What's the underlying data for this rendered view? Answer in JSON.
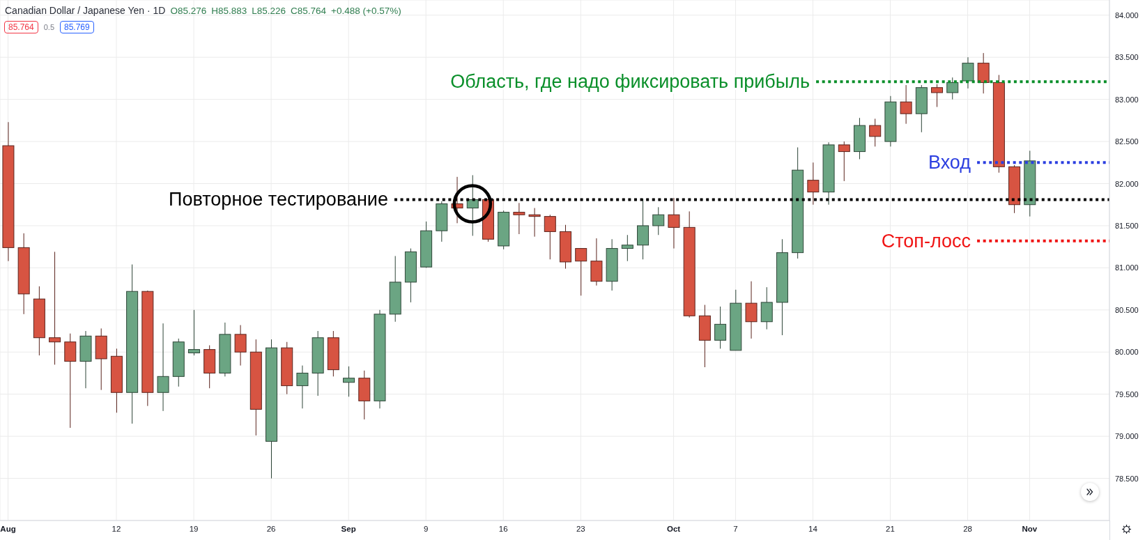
{
  "chart_data": {
    "type": "candlestick",
    "title": "Canadian Dollar / Japanese Yen · 1D",
    "annotations": [
      "O85.276",
      "H85.883",
      "L85.226",
      "C85.764",
      "+0.488 (+0.57%)",
      "85.764",
      "0.5",
      "85.769"
    ],
    "categories": [
      "Aug",
      null,
      null,
      null,
      null,
      null,
      null,
      "12",
      null,
      null,
      null,
      null,
      "19",
      null,
      null,
      null,
      null,
      "26",
      null,
      null,
      null,
      null,
      "Sep",
      null,
      null,
      null,
      null,
      "9",
      null,
      null,
      null,
      null,
      "16",
      null,
      null,
      null,
      null,
      "23",
      null,
      null,
      null,
      null,
      null,
      "Oct",
      null,
      null,
      null,
      "7",
      null,
      null,
      null,
      null,
      "14",
      null,
      null,
      null,
      null,
      "21",
      null,
      null,
      null,
      null,
      "28",
      null,
      null,
      null,
      "Nov",
      null,
      null,
      null,
      null,
      null
    ],
    "ohlc": [
      [
        82.45,
        82.73,
        81.08,
        81.24
      ],
      [
        81.24,
        81.41,
        80.45,
        80.69
      ],
      [
        80.63,
        80.78,
        79.96,
        80.17
      ],
      [
        80.17,
        81.19,
        79.85,
        80.12
      ],
      [
        80.12,
        80.22,
        79.1,
        79.89
      ],
      [
        79.89,
        80.25,
        79.57,
        80.19
      ],
      [
        80.19,
        80.28,
        79.55,
        79.92
      ],
      [
        79.95,
        80.04,
        79.28,
        79.52
      ],
      [
        79.52,
        81.04,
        79.15,
        80.72
      ],
      [
        80.72,
        80.73,
        79.36,
        79.52
      ],
      [
        79.52,
        80.34,
        79.3,
        79.71
      ],
      [
        79.71,
        80.16,
        79.59,
        80.12
      ],
      [
        79.99,
        80.5,
        79.96,
        80.03
      ],
      [
        80.03,
        80.08,
        79.57,
        79.75
      ],
      [
        79.75,
        80.35,
        79.71,
        80.21
      ],
      [
        80.21,
        80.32,
        79.84,
        80.0
      ],
      [
        80.0,
        80.15,
        79.01,
        79.32
      ],
      [
        78.94,
        80.15,
        78.5,
        80.05
      ],
      [
        80.05,
        80.12,
        79.5,
        79.6
      ],
      [
        79.6,
        79.84,
        79.33,
        79.75
      ],
      [
        79.75,
        80.25,
        79.48,
        80.17
      ],
      [
        80.17,
        80.25,
        79.71,
        79.79
      ],
      [
        79.64,
        79.83,
        79.47,
        79.69
      ],
      [
        79.69,
        79.78,
        79.2,
        79.42
      ],
      [
        79.42,
        80.5,
        79.33,
        80.45
      ],
      [
        80.45,
        81.14,
        80.36,
        80.83
      ],
      [
        80.83,
        81.23,
        80.59,
        81.19
      ],
      [
        81.01,
        81.55,
        81.0,
        81.44
      ],
      [
        81.44,
        81.79,
        81.31,
        81.76
      ],
      [
        81.76,
        82.08,
        81.53,
        81.71
      ],
      [
        81.71,
        82.1,
        81.38,
        81.81
      ],
      [
        81.81,
        81.82,
        81.31,
        81.34
      ],
      [
        81.26,
        81.68,
        81.22,
        81.66
      ],
      [
        81.66,
        81.77,
        81.4,
        81.63
      ],
      [
        81.63,
        81.71,
        81.37,
        81.61
      ],
      [
        81.61,
        81.63,
        81.1,
        81.43
      ],
      [
        81.43,
        81.51,
        80.99,
        81.07
      ],
      [
        81.23,
        81.23,
        80.67,
        81.08
      ],
      [
        81.08,
        81.35,
        80.79,
        80.84
      ],
      [
        80.84,
        81.34,
        80.73,
        81.23
      ],
      [
        81.23,
        81.39,
        81.08,
        81.27
      ],
      [
        81.27,
        81.82,
        81.1,
        81.5
      ],
      [
        81.5,
        81.72,
        81.39,
        81.63
      ],
      [
        81.63,
        81.83,
        81.23,
        81.48
      ],
      [
        81.48,
        81.67,
        80.41,
        80.43
      ],
      [
        80.43,
        80.56,
        79.82,
        80.14
      ],
      [
        80.14,
        80.54,
        80.04,
        80.33
      ],
      [
        80.02,
        80.74,
        80.02,
        80.58
      ],
      [
        80.58,
        80.84,
        80.16,
        80.36
      ],
      [
        80.36,
        80.77,
        80.27,
        80.59
      ],
      [
        80.59,
        81.34,
        80.2,
        81.18
      ],
      [
        81.18,
        82.43,
        81.11,
        82.16
      ],
      [
        82.04,
        82.25,
        81.75,
        81.9
      ],
      [
        81.9,
        82.49,
        81.75,
        82.46
      ],
      [
        82.46,
        82.5,
        82.03,
        82.38
      ],
      [
        82.38,
        82.78,
        82.29,
        82.69
      ],
      [
        82.69,
        82.77,
        82.44,
        82.56
      ],
      [
        82.5,
        83.04,
        82.44,
        82.97
      ],
      [
        82.97,
        83.17,
        82.71,
        82.83
      ],
      [
        82.83,
        83.17,
        82.61,
        83.14
      ],
      [
        83.14,
        83.18,
        82.91,
        83.08
      ],
      [
        83.08,
        83.26,
        83.0,
        83.2
      ],
      [
        83.22,
        83.5,
        83.13,
        83.43
      ],
      [
        83.43,
        83.55,
        83.07,
        83.2
      ],
      [
        83.2,
        83.29,
        82.13,
        82.2
      ],
      [
        82.2,
        82.22,
        81.65,
        81.75
      ],
      [
        81.75,
        82.39,
        81.61,
        82.27
      ],
      null,
      null,
      null,
      null,
      null
    ],
    "colors": [
      "#d75442",
      "#d75442",
      "#d75442",
      "#d75442",
      "#d75442",
      "#6ba583",
      "#d75442",
      "#d75442",
      "#6ba583",
      "#d75442",
      "#6ba583",
      "#6ba583",
      "#6ba583",
      "#d75442",
      "#6ba583",
      "#d75442",
      "#d75442",
      "#6ba583",
      "#d75442",
      "#6ba583",
      "#6ba583",
      "#d75442",
      "#6ba583",
      "#d75442",
      "#6ba583",
      "#6ba583",
      "#6ba583",
      "#6ba583",
      "#6ba583",
      "#d75442",
      "#6ba583",
      "#d75442",
      "#6ba583",
      "#d75442",
      "#d75442",
      "#d75442",
      "#d75442",
      "#d75442",
      "#d75442",
      "#6ba583",
      "#6ba583",
      "#6ba583",
      "#6ba583",
      "#d75442",
      "#d75442",
      "#d75442",
      "#6ba583",
      "#6ba583",
      "#d75442",
      "#6ba583",
      "#6ba583",
      "#6ba583",
      "#d75442",
      "#6ba583",
      "#d75442",
      "#6ba583",
      "#d75442",
      "#6ba583",
      "#d75442",
      "#6ba583",
      "#d75442",
      "#6ba583",
      "#6ba583",
      "#d75442",
      "#d75442",
      "#d75442",
      "#6ba583",
      null,
      null,
      null,
      null,
      null
    ],
    "ylim": [
      78.0,
      84.18
    ],
    "yticks": [
      {
        "value": 78.5,
        "label": "78.500"
      },
      {
        "value": 79,
        "label": "79.000"
      },
      {
        "value": 79.5,
        "label": "79.500"
      },
      {
        "value": 80,
        "label": "80.000"
      },
      {
        "value": 80.5,
        "label": "80.500"
      },
      {
        "value": 81,
        "label": "81.000"
      },
      {
        "value": 81.5,
        "label": "81.500"
      },
      {
        "value": 82,
        "label": "82.000"
      },
      {
        "value": 82.5,
        "label": "82.500"
      },
      {
        "value": 83,
        "label": "83.000"
      },
      {
        "value": 83.5,
        "label": "83.500"
      },
      {
        "value": 84,
        "label": "84.000"
      }
    ],
    "grid": true,
    "ref_lines": [
      {
        "axis": "y",
        "value": 81.81,
        "label": "Повторное тестирование",
        "color": "#000000",
        "line_style": "dotted"
      },
      {
        "axis": "y",
        "value": 83.21,
        "label": "Область, где надо фиксировать прибыль",
        "color": "#0a8f2a",
        "line_style": "dotted"
      },
      {
        "axis": "y",
        "value": 82.25,
        "label": "Вход",
        "color": "#2c3fe0",
        "line_style": "dotted"
      },
      {
        "axis": "y",
        "value": 81.32,
        "label": "Стоп-лосс",
        "color": "#f01414",
        "line_style": "dotted"
      }
    ]
  }
}
